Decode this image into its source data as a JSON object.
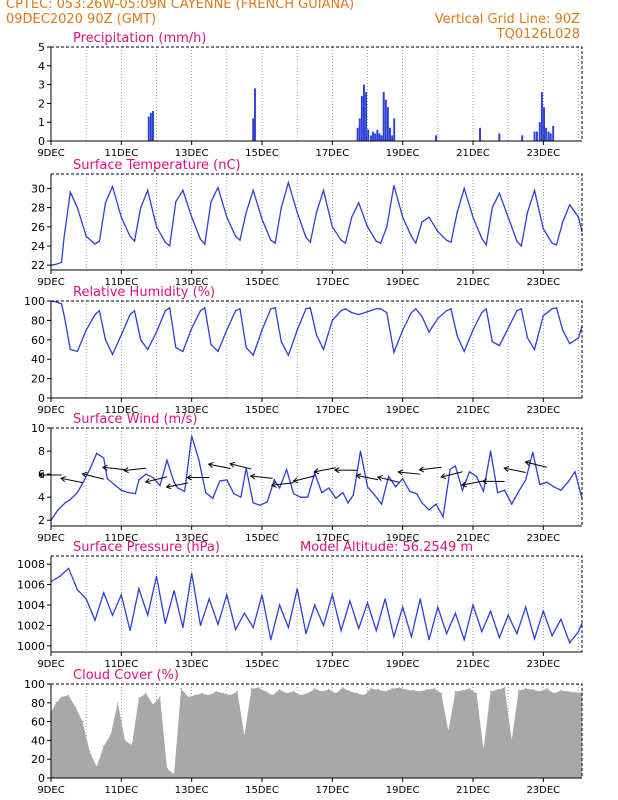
{
  "header": {
    "line1": "CPTEC:   053:26W-05:09N   CAYENNE (FRENCH GUIANA)",
    "line2_left": "09DEC2020 90Z (GMT)",
    "line2_right": "Vertical Grid Line: 90Z",
    "line3_right": "TQ0126L028"
  },
  "colors": {
    "header": "#e07818",
    "panel_title": "#e0107a",
    "series": "#2b3fd6",
    "cloud": "#a8a8a8",
    "axis": "#000000"
  },
  "x_ticks": [
    "9DEC",
    "11DEC",
    "13DEC",
    "15DEC",
    "17DEC",
    "19DEC",
    "21DEC",
    "23DEC"
  ],
  "chart_data": [
    {
      "id": "precip",
      "type": "bar",
      "title": "Precipitation (mm/h)",
      "ylim": [
        0,
        5
      ],
      "yticks": [
        0,
        1,
        2,
        3,
        4,
        5
      ],
      "x_unit": "days since 9DEC 00Z",
      "x": [
        2.78,
        2.84,
        2.9,
        5.75,
        5.8,
        8.72,
        8.78,
        8.84,
        8.9,
        8.96,
        9.02,
        9.1,
        9.16,
        9.22,
        9.28,
        9.34,
        9.4,
        9.46,
        9.52,
        9.58,
        9.64,
        9.7,
        9.76,
        10.95,
        12.2,
        12.75,
        13.4,
        13.75,
        13.82,
        13.9,
        13.96,
        14.02,
        14.08,
        14.15,
        14.21,
        14.28
      ],
      "values": [
        1.3,
        1.5,
        1.6,
        1.2,
        2.8,
        0.7,
        1.2,
        2.4,
        3.0,
        2.6,
        0.6,
        0.3,
        0.5,
        0.4,
        0.6,
        0.4,
        0.3,
        2.6,
        2.2,
        1.8,
        0.7,
        0.3,
        1.2,
        0.3,
        0.7,
        0.4,
        0.3,
        0.5,
        0.5,
        1.0,
        2.6,
        1.8,
        0.7,
        0.5,
        0.4,
        0.8
      ]
    },
    {
      "id": "temp",
      "type": "line",
      "title": "Surface Temperature (nC)",
      "ylim": [
        21.5,
        31.5
      ],
      "yticks": [
        22,
        24,
        26,
        28,
        30
      ],
      "x_unit": "days since 9DEC 00Z",
      "x": [
        0,
        0.15,
        0.3,
        0.375,
        0.55,
        0.75,
        1.0,
        1.25,
        1.375,
        1.55,
        1.75,
        2.0,
        2.25,
        2.375,
        2.55,
        2.75,
        3.0,
        3.25,
        3.375,
        3.55,
        3.75,
        4.0,
        4.25,
        4.375,
        4.55,
        4.75,
        5.0,
        5.25,
        5.375,
        5.55,
        5.75,
        6.0,
        6.25,
        6.375,
        6.55,
        6.75,
        7.0,
        7.25,
        7.375,
        7.55,
        7.75,
        8.0,
        8.25,
        8.375,
        8.55,
        8.75,
        9.0,
        9.25,
        9.375,
        9.55,
        9.75,
        10.0,
        10.25,
        10.375,
        10.55,
        10.75,
        11.0,
        11.25,
        11.375,
        11.55,
        11.75,
        12.0,
        12.25,
        12.375,
        12.55,
        12.75,
        13.0,
        13.25,
        13.375,
        13.55,
        13.75,
        14.0,
        14.25,
        14.375,
        14.55,
        14.75,
        15.0,
        15.1
      ],
      "values": [
        22.0,
        22.1,
        22.3,
        25.0,
        29.6,
        28.0,
        25.0,
        24.2,
        24.5,
        28.5,
        30.2,
        27.0,
        25.0,
        24.5,
        28.0,
        29.8,
        26.0,
        24.4,
        24.0,
        28.6,
        29.8,
        27.0,
        24.7,
        24.2,
        28.6,
        30.1,
        27.0,
        25.0,
        24.6,
        27.5,
        29.8,
        26.8,
        24.6,
        24.3,
        28.0,
        30.6,
        27.5,
        24.9,
        24.4,
        27.5,
        29.8,
        26.0,
        24.6,
        24.3,
        27.0,
        28.5,
        26.0,
        24.5,
        24.3,
        26.0,
        30.3,
        27.0,
        25.0,
        24.3,
        26.5,
        27.0,
        25.5,
        24.6,
        24.4,
        27.5,
        30.0,
        27.0,
        24.8,
        24.1,
        28.0,
        29.5,
        27.0,
        24.5,
        24.0,
        27.5,
        29.8,
        25.8,
        24.3,
        24.1,
        26.5,
        28.3,
        27.0,
        25.5
      ]
    },
    {
      "id": "rh",
      "type": "line",
      "title": "Relative Humidity (%)",
      "ylim": [
        0,
        100
      ],
      "yticks": [
        0,
        20,
        40,
        60,
        80,
        100
      ],
      "x_unit": "days since 9DEC 00Z",
      "x": [
        0,
        0.15,
        0.3,
        0.375,
        0.55,
        0.75,
        1.0,
        1.25,
        1.375,
        1.55,
        1.75,
        2.0,
        2.25,
        2.375,
        2.55,
        2.75,
        3.0,
        3.25,
        3.375,
        3.55,
        3.75,
        4.0,
        4.25,
        4.375,
        4.55,
        4.75,
        5.0,
        5.25,
        5.375,
        5.55,
        5.75,
        6.0,
        6.25,
        6.375,
        6.55,
        6.75,
        7.0,
        7.25,
        7.375,
        7.55,
        7.75,
        8.0,
        8.25,
        8.375,
        8.55,
        8.75,
        9.0,
        9.25,
        9.375,
        9.55,
        9.75,
        10.0,
        10.25,
        10.375,
        10.55,
        10.75,
        11.0,
        11.25,
        11.375,
        11.55,
        11.75,
        12.0,
        12.25,
        12.375,
        12.55,
        12.75,
        13.0,
        13.25,
        13.375,
        13.55,
        13.75,
        14.0,
        14.25,
        14.375,
        14.55,
        14.75,
        15.0,
        15.1
      ],
      "values": [
        100,
        99,
        97,
        85,
        50,
        48,
        70,
        86,
        90,
        60,
        45,
        65,
        86,
        90,
        60,
        50,
        68,
        90,
        93,
        52,
        48,
        72,
        90,
        93,
        55,
        48,
        70,
        90,
        92,
        52,
        44,
        70,
        92,
        93,
        58,
        44,
        70,
        92,
        93,
        65,
        50,
        80,
        90,
        92,
        88,
        86,
        89,
        92,
        92,
        88,
        47,
        70,
        88,
        92,
        84,
        68,
        82,
        90,
        92,
        64,
        48,
        70,
        88,
        92,
        58,
        54,
        72,
        90,
        92,
        62,
        50,
        85,
        92,
        93,
        70,
        56,
        62,
        74
      ]
    },
    {
      "id": "wind",
      "type": "line",
      "title": "Surface Wind (m/s)",
      "ylim": [
        1.5,
        10
      ],
      "yticks": [
        2,
        4,
        6,
        8,
        10
      ],
      "x_unit": "days since 9DEC 00Z",
      "x": [
        0,
        0.2,
        0.4,
        0.55,
        0.75,
        0.95,
        1.1,
        1.3,
        1.5,
        1.6,
        1.8,
        2.0,
        2.2,
        2.4,
        2.5,
        2.7,
        2.9,
        3.1,
        3.3,
        3.5,
        3.6,
        3.8,
        4.0,
        4.2,
        4.4,
        4.6,
        4.8,
        5.0,
        5.2,
        5.4,
        5.55,
        5.75,
        5.95,
        6.15,
        6.35,
        6.5,
        6.7,
        6.9,
        7.1,
        7.3,
        7.5,
        7.7,
        7.9,
        8.1,
        8.3,
        8.45,
        8.6,
        8.8,
        9.0,
        9.2,
        9.4,
        9.6,
        9.8,
        10.0,
        10.2,
        10.4,
        10.55,
        10.75,
        10.95,
        11.15,
        11.35,
        11.5,
        11.7,
        11.9,
        12.1,
        12.3,
        12.5,
        12.7,
        12.9,
        13.1,
        13.3,
        13.5,
        13.7,
        13.9,
        14.1,
        14.3,
        14.5,
        14.7,
        14.9,
        15.1
      ],
      "values": [
        2.0,
        2.9,
        3.5,
        3.8,
        4.4,
        5.5,
        6.4,
        7.8,
        7.4,
        5.6,
        5.1,
        4.6,
        4.4,
        4.3,
        5.5,
        6.0,
        5.7,
        5.0,
        7.2,
        5.3,
        4.8,
        4.5,
        9.3,
        7.3,
        4.4,
        3.9,
        5.4,
        5.5,
        4.3,
        4.0,
        6.5,
        3.5,
        3.3,
        3.6,
        5.5,
        4.8,
        6.4,
        4.3,
        4.0,
        4.0,
        6.1,
        4.4,
        4.8,
        3.9,
        4.4,
        3.5,
        4.2,
        8.0,
        4.9,
        4.2,
        3.4,
        5.8,
        4.9,
        5.6,
        4.5,
        4.3,
        3.5,
        2.9,
        3.4,
        2.3,
        6.4,
        6.7,
        4.6,
        6.2,
        5.8,
        4.5,
        8.0,
        4.4,
        4.6,
        3.4,
        4.5,
        5.5,
        7.9,
        5.1,
        5.3,
        4.9,
        4.6,
        5.3,
        6.2,
        3.9
      ]
    },
    {
      "id": "pres",
      "type": "line",
      "title": "Surface Pressure (hPa)",
      "annotation": "Model Altitude: 56.2549 m",
      "ylim": [
        999.4,
        1008.8
      ],
      "yticks": [
        1000,
        1002,
        1004,
        1006,
        1008
      ],
      "x_unit": "days since 9DEC 00Z",
      "x": [
        0,
        0.25,
        0.5,
        0.75,
        1.0,
        1.25,
        1.5,
        1.75,
        2.0,
        2.25,
        2.5,
        2.75,
        3.0,
        3.25,
        3.5,
        3.75,
        4.0,
        4.25,
        4.5,
        4.75,
        5.0,
        5.25,
        5.5,
        5.75,
        6.0,
        6.25,
        6.5,
        6.75,
        7.0,
        7.25,
        7.5,
        7.75,
        8.0,
        8.25,
        8.5,
        8.75,
        9.0,
        9.25,
        9.5,
        9.75,
        10.0,
        10.25,
        10.5,
        10.75,
        11.0,
        11.25,
        11.5,
        11.75,
        12.0,
        12.25,
        12.5,
        12.75,
        13.0,
        13.25,
        13.5,
        13.75,
        14.0,
        14.25,
        14.5,
        14.75,
        15.0,
        15.1
      ],
      "values": [
        1006.3,
        1006.8,
        1007.6,
        1005.5,
        1004.6,
        1002.5,
        1005.2,
        1003.0,
        1005.0,
        1001.5,
        1005.6,
        1003.0,
        1006.8,
        1002.2,
        1005.4,
        1001.8,
        1007.1,
        1002.0,
        1004.6,
        1002.1,
        1005.0,
        1001.6,
        1003.2,
        1001.8,
        1005.0,
        1000.6,
        1004.0,
        1001.8,
        1005.6,
        1001.2,
        1004.0,
        1002.0,
        1005.0,
        1001.5,
        1004.4,
        1001.7,
        1004.2,
        1001.5,
        1004.6,
        1000.9,
        1003.8,
        1000.9,
        1004.6,
        1000.6,
        1003.8,
        1001.2,
        1003.2,
        1000.6,
        1004.0,
        1001.4,
        1003.4,
        1000.8,
        1003.0,
        1001.2,
        1003.8,
        1000.7,
        1003.4,
        1001.0,
        1002.6,
        1000.3,
        1001.4,
        1002.2
      ]
    },
    {
      "id": "cloud",
      "type": "area",
      "title": "Cloud Cover (%)",
      "ylim": [
        0,
        100
      ],
      "yticks": [
        0,
        20,
        40,
        60,
        80,
        100
      ],
      "x_unit": "days since 9DEC 00Z",
      "x": [
        0,
        0.15,
        0.3,
        0.5,
        0.7,
        0.9,
        1.1,
        1.3,
        1.5,
        1.7,
        1.9,
        2.1,
        2.3,
        2.5,
        2.7,
        2.9,
        3.1,
        3.3,
        3.5,
        3.7,
        3.9,
        4.1,
        4.3,
        4.5,
        4.7,
        4.9,
        5.1,
        5.3,
        5.5,
        5.7,
        5.9,
        6.1,
        6.3,
        6.5,
        6.7,
        6.9,
        7.1,
        7.3,
        7.5,
        7.7,
        7.9,
        8.1,
        8.3,
        8.5,
        8.7,
        8.9,
        9.1,
        9.3,
        9.5,
        9.7,
        9.9,
        10.1,
        10.3,
        10.5,
        10.7,
        10.9,
        11.1,
        11.3,
        11.5,
        11.7,
        11.9,
        12.1,
        12.3,
        12.5,
        12.7,
        12.9,
        13.1,
        13.3,
        13.5,
        13.7,
        13.9,
        14.1,
        14.3,
        14.5,
        14.7,
        14.9,
        15.1
      ],
      "values": [
        70,
        80,
        86,
        88,
        75,
        60,
        28,
        12,
        34,
        46,
        80,
        40,
        35,
        85,
        90,
        78,
        86,
        10,
        4,
        95,
        86,
        88,
        90,
        88,
        92,
        90,
        88,
        92,
        45,
        95,
        96,
        92,
        88,
        94,
        90,
        92,
        88,
        90,
        95,
        92,
        94,
        90,
        96,
        92,
        90,
        88,
        95,
        94,
        92,
        95,
        96,
        94,
        93,
        92,
        94,
        95,
        90,
        50,
        92,
        93,
        95,
        90,
        30,
        92,
        94,
        96,
        40,
        93,
        95,
        94,
        92,
        95,
        90,
        93,
        92,
        91,
        91
      ]
    }
  ]
}
